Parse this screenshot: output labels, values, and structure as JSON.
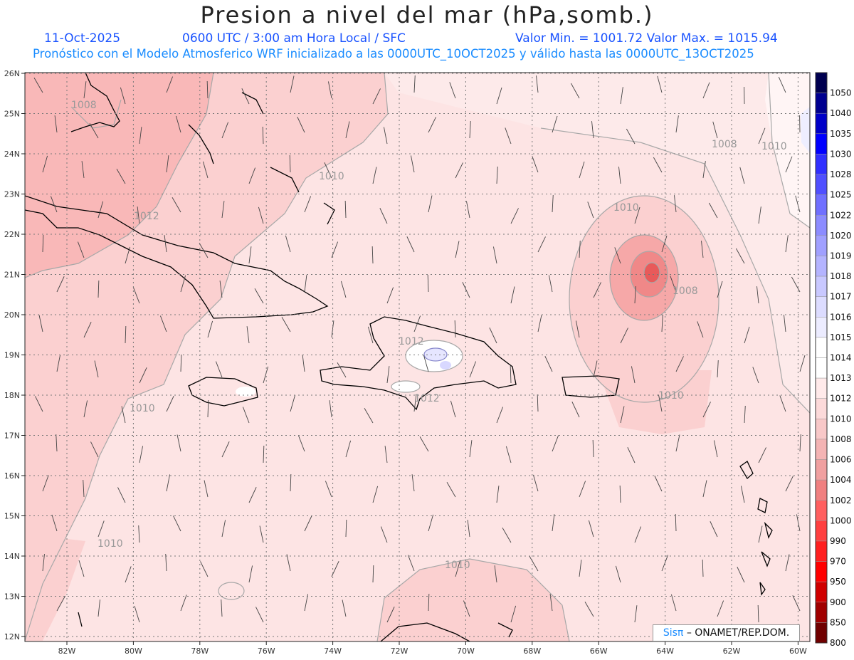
{
  "header": {
    "title": "Presion a nivel del mar (hPa,somb.)",
    "date": "11-Oct-2025",
    "time": "0600 UTC / 3:00 am Hora Local / SFC",
    "min_max": "Valor Min. = 1001.72  Valor Max. = 1015.94",
    "forecast": "Pronóstico con el Modelo Atmosferico WRF inicializado a las 0000UTC_10OCT2025 y válido hasta las  0000UTC_13OCT2025"
  },
  "axes": {
    "lon_labels": [
      "82W",
      "80W",
      "78W",
      "76W",
      "74W",
      "72W",
      "70W",
      "68W",
      "66W",
      "64W",
      "62W",
      "60W"
    ],
    "lat_labels": [
      "26N",
      "25N",
      "24N",
      "23N",
      "22N",
      "21N",
      "20N",
      "19N",
      "18N",
      "17N",
      "16N",
      "15N",
      "14N",
      "13N",
      "12N"
    ]
  },
  "contour_labels": [
    {
      "text": "1008"
    },
    {
      "text": "1010"
    },
    {
      "text": "1012"
    },
    {
      "text": "1008"
    },
    {
      "text": "1010"
    },
    {
      "text": "1008"
    },
    {
      "text": "1010"
    },
    {
      "text": "1010"
    },
    {
      "text": "1012"
    },
    {
      "text": "1012"
    },
    {
      "text": "1010"
    },
    {
      "text": "1010"
    },
    {
      "text": "1010"
    }
  ],
  "legend": {
    "levels": [
      "1050",
      "1040",
      "1035",
      "1030",
      "1028",
      "1025",
      "1022",
      "1020",
      "1019",
      "1018",
      "1017",
      "1016",
      "1015",
      "1014",
      "1013",
      "1012",
      "1010",
      "1008",
      "1006",
      "1004",
      "1002",
      "1000",
      "990",
      "970",
      "950",
      "900",
      "850",
      "800"
    ],
    "colors": [
      "#000050",
      "#000090",
      "#0000c8",
      "#0000ff",
      "#3030ff",
      "#5050ff",
      "#7070ff",
      "#8c8cff",
      "#a0a0ff",
      "#b4b4ff",
      "#c8c8ff",
      "#dcdcff",
      "#ececff",
      "#ffffff",
      "#ffffff",
      "#ffeaea",
      "#fcdada",
      "#f8c8c8",
      "#f4b4b4",
      "#f0a0a0",
      "#f08080",
      "#ff6060",
      "#ff4040",
      "#ff2020",
      "#ff0000",
      "#d00000",
      "#a00000",
      "#700000"
    ]
  },
  "credit": {
    "logo": "Sisπ",
    "text": "– ONAMET/REP.DOM."
  },
  "colors": {
    "subtitle": "#1a53ff",
    "forecast_line": "#1a8cff",
    "background_field": "#fde4e4"
  }
}
